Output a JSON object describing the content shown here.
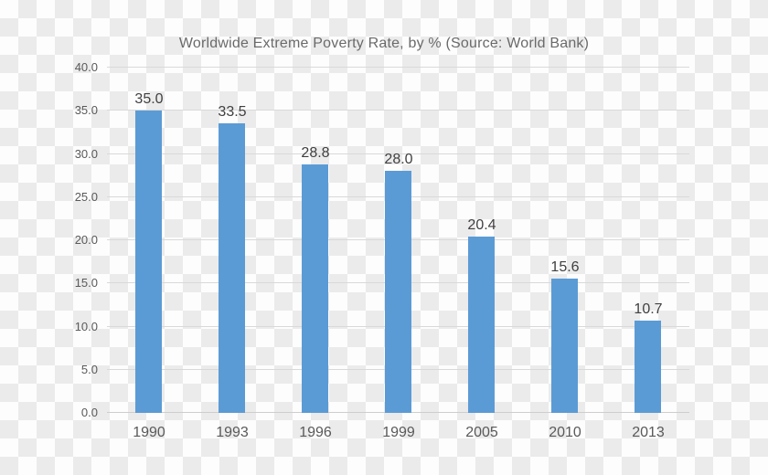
{
  "title": "Worldwide Extreme Poverty Rate, by % (Source: World Bank)",
  "chart_data": {
    "type": "bar",
    "title": "Worldwide Extreme Poverty Rate, by % (Source: World Bank)",
    "categories": [
      "1990",
      "1993",
      "1996",
      "1999",
      "2005",
      "2010",
      "2013"
    ],
    "values": [
      35.0,
      33.5,
      28.8,
      28.0,
      20.4,
      15.6,
      10.7
    ],
    "value_labels": [
      "35.0",
      "33.5",
      "28.8",
      "28.0",
      "20.4",
      "15.6",
      "10.7"
    ],
    "xlabel": "",
    "ylabel": "",
    "ylim": [
      0,
      40
    ],
    "ytick_step": 5,
    "ytick_labels": [
      "0.0",
      "5.0",
      "10.0",
      "15.0",
      "20.0",
      "25.0",
      "30.0",
      "35.0",
      "40.0"
    ],
    "grid": true,
    "legend": false
  },
  "colors": {
    "bar": "#5b9bd5",
    "gridline": "#d9d9d9",
    "axis_text": "#595959",
    "value_text": "#404040",
    "title_text": "#6a6a6a",
    "checker_light": "#fdfdfd",
    "checker_dark": "#ebebeb"
  }
}
